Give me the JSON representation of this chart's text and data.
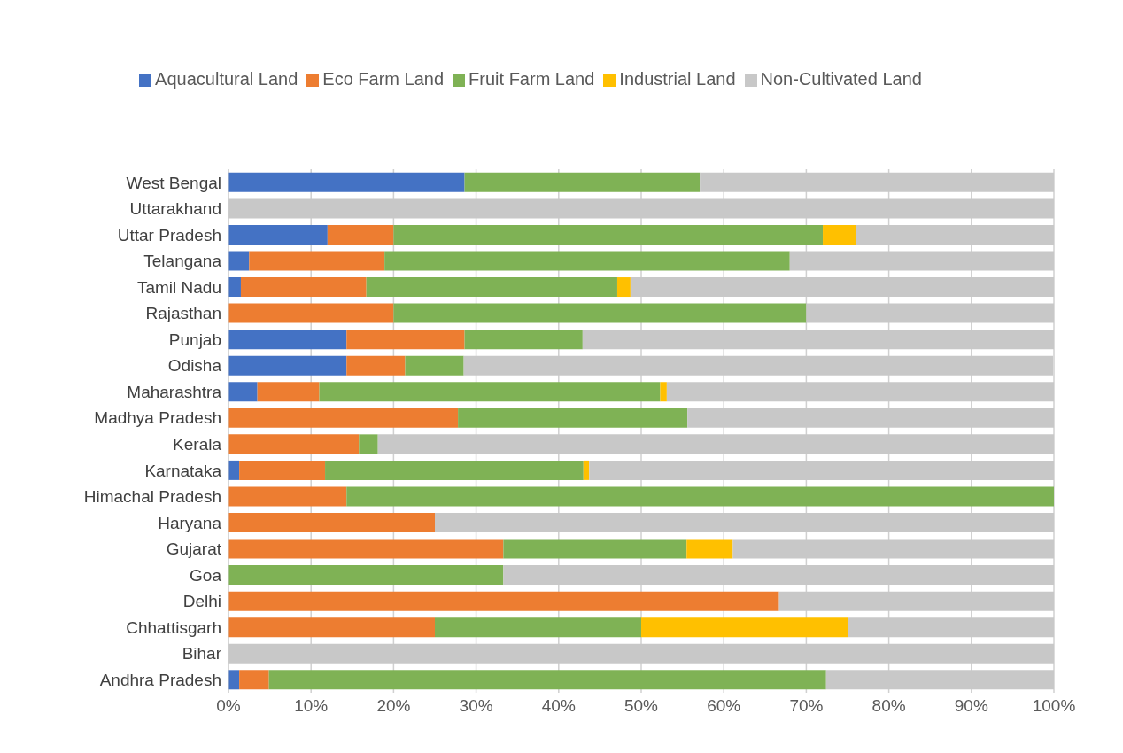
{
  "chart_data": {
    "type": "bar",
    "orientation": "horizontal",
    "stacked": true,
    "categories": [
      "West Bengal",
      "Uttarakhand",
      "Uttar Pradesh",
      "Telangana",
      "Tamil Nadu",
      "Rajasthan",
      "Punjab",
      "Odisha",
      "Maharashtra",
      "Madhya Pradesh",
      "Kerala",
      "Karnataka",
      "Himachal Pradesh",
      "Haryana",
      "Gujarat",
      "Goa",
      "Delhi",
      "Chhattisgarh",
      "Bihar",
      "Andhra Pradesh"
    ],
    "series": [
      {
        "name": "Aquacultural Land",
        "color": "#4472c4",
        "values": [
          28.6,
          0,
          12,
          2.5,
          1.5,
          0,
          14.3,
          14.3,
          3.5,
          0,
          0,
          1.3,
          0,
          0,
          0,
          0,
          0,
          0,
          0,
          1.3
        ]
      },
      {
        "name": "Eco Farm Land",
        "color": "#ed7d31",
        "values": [
          0,
          0,
          8,
          16.4,
          15.2,
          20,
          14.3,
          7.1,
          7.5,
          27.8,
          15.8,
          10.4,
          14.3,
          25,
          33.3,
          0,
          66.7,
          25,
          0,
          3.6
        ]
      },
      {
        "name": "Fruit Farm Land",
        "color": "#7fb255",
        "values": [
          28.5,
          0,
          52,
          49.1,
          30.4,
          50,
          14.3,
          7.1,
          41.3,
          27.8,
          2.3,
          31.3,
          85.7,
          0,
          22.2,
          33.3,
          0,
          25,
          0,
          67.5
        ]
      },
      {
        "name": "Industrial Land",
        "color": "#ffc000",
        "values": [
          0,
          0,
          4,
          0,
          1.6,
          0,
          0,
          0,
          0.8,
          0,
          0,
          0.7,
          0,
          0,
          5.6,
          0,
          0,
          25,
          0,
          0
        ]
      },
      {
        "name": "Non-Cultivated Land",
        "color": "#c8c8c8",
        "values": [
          42.9,
          100,
          24,
          32,
          51.3,
          30,
          57.1,
          71.4,
          46.9,
          44.4,
          81.9,
          56.3,
          0,
          75,
          38.9,
          66.7,
          33.3,
          25,
          100,
          27.6
        ]
      }
    ],
    "xlim": [
      0,
      100
    ],
    "xticks": [
      {
        "value": 0,
        "label": "0%"
      },
      {
        "value": 10,
        "label": "10%"
      },
      {
        "value": 20,
        "label": "20%"
      },
      {
        "value": 30,
        "label": "30%"
      },
      {
        "value": 40,
        "label": "40%"
      },
      {
        "value": 50,
        "label": "50%"
      },
      {
        "value": 60,
        "label": "60%"
      },
      {
        "value": 70,
        "label": "70%"
      },
      {
        "value": 80,
        "label": "80%"
      },
      {
        "value": 90,
        "label": "90%"
      },
      {
        "value": 100,
        "label": "100%"
      }
    ],
    "grid": "x",
    "legend": "top"
  }
}
